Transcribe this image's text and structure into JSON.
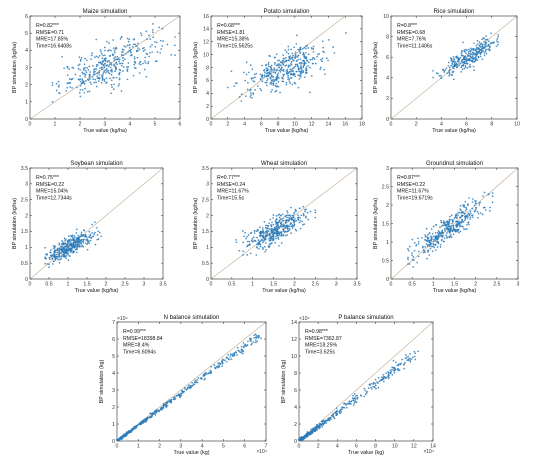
{
  "figure": {
    "point_color": "#2b7bba",
    "reference_line_color": "#c8b49a"
  },
  "chart_data": [
    {
      "type": "scatter",
      "title": "Maize simulation",
      "xlabel": "True value (kg/ha)",
      "ylabel": "BP simulation (kg/ha)",
      "xlim": [
        0,
        6
      ],
      "ylim": [
        0,
        6
      ],
      "xticks": [
        "0",
        "1",
        "2",
        "3",
        "4",
        "5",
        "6"
      ],
      "yticks": [
        "0",
        "1",
        "2",
        "3",
        "4",
        "5",
        "6"
      ],
      "x_exponent": "",
      "y_exponent": "",
      "stats": [
        "R=0.82***",
        "RMSE=0.71",
        "MRE=17.85%",
        "Time=16.6408s"
      ],
      "reference_line": "y = x",
      "n_points": 380,
      "x_mean": 3.2,
      "x_spread": 1.0,
      "x_range": [
        0.9,
        5.8
      ],
      "fit_slope": 0.62,
      "fit_intercept": 1.2,
      "noise_sd": 0.6
    },
    {
      "type": "scatter",
      "title": "Potato simulation",
      "xlabel": "True value (kg/ha)",
      "ylabel": "BP simulation (kg/ha)",
      "xlim": [
        0,
        18
      ],
      "ylim": [
        0,
        16
      ],
      "xticks": [
        "0",
        "2",
        "4",
        "6",
        "8",
        "10",
        "12",
        "14",
        "16",
        "18"
      ],
      "yticks": [
        "0",
        "2",
        "4",
        "6",
        "8",
        "10",
        "12",
        "14",
        "16"
      ],
      "x_exponent": "",
      "y_exponent": "",
      "stats": [
        "R=0.68***",
        "RMSE=1.81",
        "MRE=15.38%",
        "Time=15.5625s"
      ],
      "reference_line": "y = x",
      "n_points": 400,
      "x_mean": 8.8,
      "x_spread": 2.4,
      "x_range": [
        2.0,
        16.5
      ],
      "fit_slope": 0.45,
      "fit_intercept": 3.8,
      "noise_sd": 1.4
    },
    {
      "type": "scatter",
      "title": "Rice simulation",
      "xlabel": "True value (kg/ha)",
      "ylabel": "BP simulation (kg/ha)",
      "xlim": [
        0,
        10
      ],
      "ylim": [
        0,
        10
      ],
      "xticks": [
        "0",
        "2",
        "4",
        "6",
        "8",
        "10"
      ],
      "yticks": [
        "0",
        "2",
        "4",
        "6",
        "8",
        "10"
      ],
      "x_exponent": "",
      "y_exponent": "",
      "stats": [
        "R=0.8***",
        "RMSE=0.68",
        "MRE=7.76%",
        "Time=11.1406s"
      ],
      "reference_line": "y = x",
      "n_points": 300,
      "x_mean": 6.3,
      "x_spread": 1.1,
      "x_range": [
        3.0,
        8.5
      ],
      "fit_slope": 0.72,
      "fit_intercept": 1.6,
      "noise_sd": 0.5
    },
    {
      "type": "scatter",
      "title": "Soybean simulation",
      "xlabel": "True value (kg/ha)",
      "ylabel": "BP simulation (kg/ha)",
      "xlim": [
        0,
        3.5
      ],
      "ylim": [
        0,
        3.5
      ],
      "xticks": [
        "0",
        "0.5",
        "1",
        "1.5",
        "2",
        "2.5",
        "3",
        "3.5"
      ],
      "yticks": [
        "0",
        "0.5",
        "1",
        "1.5",
        "2",
        "2.5",
        "3",
        "3.5"
      ],
      "x_exponent": "",
      "y_exponent": "",
      "stats": [
        "R=0.75***",
        "RMSE=0.22",
        "MRE=15.04%",
        "Time=12.7344s"
      ],
      "reference_line": "y = x",
      "n_points": 380,
      "x_mean": 1.05,
      "x_spread": 0.32,
      "x_range": [
        0.4,
        3.0
      ],
      "fit_slope": 0.6,
      "fit_intercept": 0.4,
      "noise_sd": 0.16
    },
    {
      "type": "scatter",
      "title": "Wheat simulation",
      "xlabel": "True value (kg/ha)",
      "ylabel": "BP simulation (kg/ha)",
      "xlim": [
        0,
        3.5
      ],
      "ylim": [
        0,
        3.5
      ],
      "xticks": [
        "0",
        "0.5",
        "1",
        "1.5",
        "2",
        "2.5",
        "3",
        "3.5"
      ],
      "yticks": [
        "0",
        "0.5",
        "1",
        "1.5",
        "2",
        "2.5",
        "3",
        "3.5"
      ],
      "x_exponent": "",
      "y_exponent": "",
      "stats": [
        "R=0.77***",
        "RMSE=0.24",
        "MRE=11.67%",
        "Time=15.5s"
      ],
      "reference_line": "y = x",
      "n_points": 400,
      "x_mean": 1.55,
      "x_spread": 0.35,
      "x_range": [
        0.6,
        2.5
      ],
      "fit_slope": 0.65,
      "fit_intercept": 0.55,
      "noise_sd": 0.2
    },
    {
      "type": "scatter",
      "title": "Groundnut simulation",
      "xlabel": "True value (kg/ha)",
      "ylabel": "BP simulation (kg/ha)",
      "xlim": [
        0,
        3
      ],
      "ylim": [
        0,
        3
      ],
      "xticks": [
        "0",
        "0.5",
        "1",
        "1.5",
        "2",
        "2.5",
        "3"
      ],
      "yticks": [
        "0",
        "0.5",
        "1",
        "1.5",
        "2",
        "2.5",
        "3"
      ],
      "x_exponent": "",
      "y_exponent": "",
      "stats": [
        "R=0.87***",
        "RMSE=0.22",
        "MRE=11.67%",
        "Time=19.6719s"
      ],
      "reference_line": "y = x",
      "n_points": 380,
      "x_mean": 1.35,
      "x_spread": 0.42,
      "x_range": [
        0.4,
        2.4
      ],
      "fit_slope": 0.78,
      "fit_intercept": 0.3,
      "noise_sd": 0.18
    },
    {
      "type": "scatter",
      "title": "N balance simulation",
      "xlabel": "True value (kg)",
      "ylabel": "BP simulation (kg)",
      "xlim": [
        0,
        7
      ],
      "ylim": [
        0,
        7
      ],
      "xticks": [
        "0",
        "1",
        "2",
        "3",
        "4",
        "5",
        "6",
        "7"
      ],
      "yticks": [
        "0",
        "1",
        "2",
        "3",
        "4",
        "5",
        "6",
        "7"
      ],
      "x_exponent": "×10⁴",
      "y_exponent": "×10⁴",
      "stats": [
        "R=0.99***",
        "RMSE=18398.84",
        "MRE=8.4%",
        "Time=6.6094s"
      ],
      "reference_line": "y = x",
      "n_points": 500,
      "x_mean": 1.2,
      "x_spread": 1.1,
      "x_range": [
        0.0,
        6.8
      ],
      "fit_slope": 0.93,
      "fit_intercept": 0.0,
      "noise_sd": 0.11
    },
    {
      "type": "scatter",
      "title": "P balance simulation",
      "xlabel": "True value (kg)",
      "ylabel": "BP simulation (kg)",
      "xlim": [
        0,
        14
      ],
      "ylim": [
        0,
        14
      ],
      "xticks": [
        "0",
        "2",
        "4",
        "6",
        "8",
        "10",
        "12",
        "14"
      ],
      "yticks": [
        "0",
        "2",
        "4",
        "6",
        "8",
        "10",
        "12",
        "14"
      ],
      "x_exponent": "×10⁴",
      "y_exponent": "×10⁴",
      "stats": [
        "R=0.98***",
        "RMSE=7362.87",
        "MRE=18.25%",
        "Time=3.625s"
      ],
      "reference_line": "y = x",
      "n_points": 420,
      "x_mean": 2.0,
      "x_spread": 2.0,
      "x_range": [
        0.0,
        12.5
      ],
      "fit_slope": 0.84,
      "fit_intercept": 0.0,
      "noise_sd": 0.35
    }
  ]
}
